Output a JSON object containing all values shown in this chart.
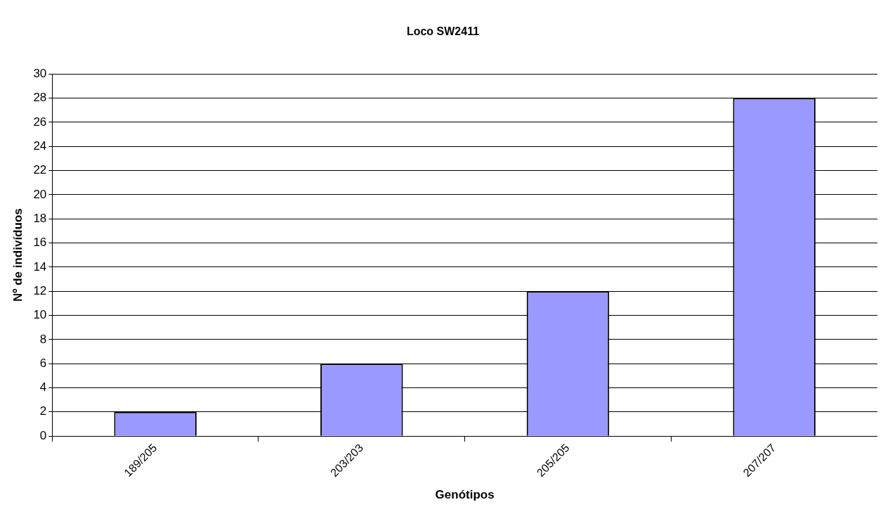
{
  "chart_data": {
    "type": "bar",
    "title": "Loco SW2411",
    "xlabel": "Genótipos",
    "ylabel": "Nº de indivíduos",
    "categories": [
      "189/205",
      "203/203",
      "205/205",
      "207/207"
    ],
    "values": [
      2,
      6,
      12,
      28
    ],
    "color": "#9999ff",
    "ylim": [
      0,
      30
    ],
    "yticks": [
      0,
      2,
      4,
      6,
      8,
      10,
      12,
      14,
      16,
      18,
      20,
      22,
      24,
      26,
      28,
      30
    ],
    "grid": "y",
    "legend": false
  }
}
